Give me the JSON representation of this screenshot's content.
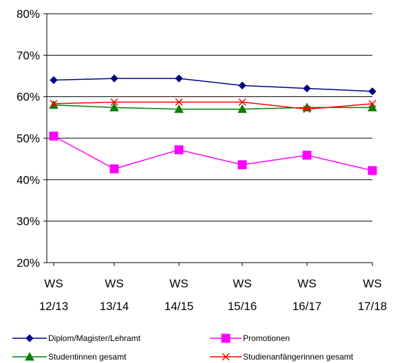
{
  "chart_data": {
    "type": "line",
    "categories": [
      [
        "WS",
        "12/13"
      ],
      [
        "WS",
        "13/14"
      ],
      [
        "WS",
        "14/15"
      ],
      [
        "WS",
        "15/16"
      ],
      [
        "WS",
        "16/17"
      ],
      [
        "WS",
        "17/18"
      ]
    ],
    "ylim": [
      20,
      80
    ],
    "yticks": [
      20,
      30,
      40,
      50,
      60,
      70,
      80
    ],
    "ytick_labels": [
      "20%",
      "30%",
      "40%",
      "50%",
      "60%",
      "70%",
      "80%"
    ],
    "grid": true,
    "legend_position": "bottom",
    "series": [
      {
        "name": "Diplom/Magister/Lehramt",
        "color": "#000080",
        "marker": "diamond",
        "values": [
          64.0,
          64.4,
          64.4,
          62.7,
          62.0,
          61.3
        ]
      },
      {
        "name": "Promotionen",
        "color": "#FF00FF",
        "marker": "square",
        "values": [
          50.5,
          42.6,
          47.2,
          43.6,
          45.9,
          42.2
        ]
      },
      {
        "name": "Studentinnen gesamt",
        "color": "#008000",
        "marker": "triangle",
        "values": [
          58.0,
          57.4,
          57.0,
          57.0,
          57.4,
          57.4
        ]
      },
      {
        "name": "Studienanfängerinnen gesamt",
        "color": "#FF0000",
        "marker": "x",
        "values": [
          58.3,
          58.7,
          58.7,
          58.7,
          57.0,
          58.3
        ]
      }
    ]
  }
}
